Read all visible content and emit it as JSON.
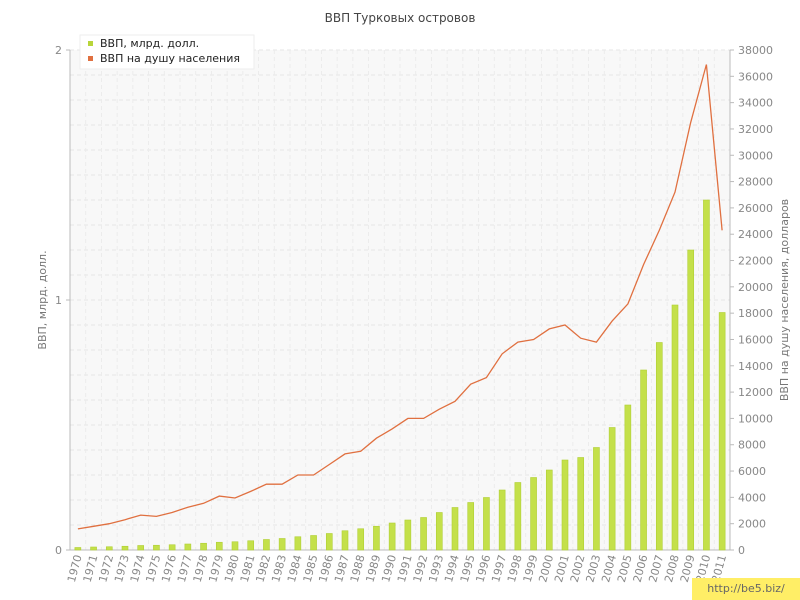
{
  "chart_data": {
    "type": "bar+line",
    "title": "ВВП Турковых островов",
    "ylabel_left": "ВВП, млрд. долл.",
    "ylabel_right": "ВВП на душу населения, долларов",
    "categories": [
      "1970",
      "1971",
      "1972",
      "1973",
      "1974",
      "1975",
      "1976",
      "1977",
      "1978",
      "1979",
      "1980",
      "1981",
      "1982",
      "1983",
      "1984",
      "1985",
      "1986",
      "1987",
      "1988",
      "1989",
      "1990",
      "1991",
      "1992",
      "1993",
      "1994",
      "1995",
      "1996",
      "1997",
      "1998",
      "1999",
      "2000",
      "2001",
      "2002",
      "2003",
      "2004",
      "2005",
      "2006",
      "2007",
      "2008",
      "2009",
      "2010",
      "2011"
    ],
    "series": [
      {
        "name": "ВВП, млрд. долл.",
        "type": "bar",
        "axis": "left",
        "color": "#c4e04a",
        "values": [
          0.01,
          0.012,
          0.013,
          0.015,
          0.018,
          0.019,
          0.021,
          0.024,
          0.027,
          0.031,
          0.033,
          0.037,
          0.042,
          0.046,
          0.053,
          0.058,
          0.066,
          0.077,
          0.085,
          0.095,
          0.108,
          0.12,
          0.13,
          0.15,
          0.17,
          0.19,
          0.21,
          0.24,
          0.27,
          0.29,
          0.32,
          0.36,
          0.37,
          0.41,
          0.49,
          0.58,
          0.72,
          0.83,
          0.98,
          1.2,
          1.4,
          0.95
        ]
      },
      {
        "name": "ВВП на душу населения",
        "type": "line",
        "axis": "right",
        "color": "#e07040",
        "values": [
          1600,
          1800,
          2000,
          2300,
          2650,
          2550,
          2850,
          3250,
          3550,
          4100,
          3950,
          4450,
          5000,
          5000,
          5700,
          5700,
          6500,
          7300,
          7500,
          8500,
          9200,
          10000,
          10000,
          10700,
          11300,
          12600,
          13100,
          14900,
          15800,
          16000,
          16800,
          17100,
          16100,
          15800,
          17400,
          18700,
          21700,
          24300,
          27200,
          32500,
          36900,
          24300
        ]
      }
    ],
    "ylim_left": [
      0,
      2
    ],
    "yticks_left": [
      "0",
      "1",
      "2"
    ],
    "ylim_right": [
      0,
      38000
    ],
    "yticks_right": [
      "0",
      "2000",
      "4000",
      "6000",
      "8000",
      "10000",
      "12000",
      "14000",
      "16000",
      "18000",
      "20000",
      "22000",
      "24000",
      "26000",
      "28000",
      "30000",
      "32000",
      "34000",
      "36000",
      "38000"
    ],
    "grid": true,
    "legend_position": "top-left"
  },
  "watermark": "http://be5.biz/"
}
